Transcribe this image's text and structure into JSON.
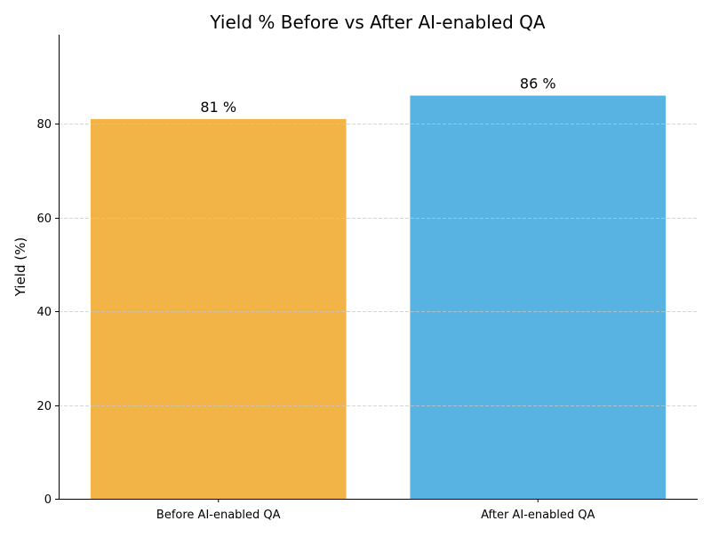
{
  "chart_data": {
    "type": "bar",
    "title": "Yield % Before vs After AI-enabled QA",
    "xlabel": "",
    "ylabel": "Yield (%)",
    "categories": [
      "Before AI-enabled QA",
      "After AI-enabled QA"
    ],
    "values": [
      81,
      86
    ],
    "data_labels": [
      "81 %",
      "86 %"
    ],
    "colors": [
      "#F2B447",
      "#58B2E2"
    ],
    "ylim": [
      0,
      99
    ],
    "yticks": [
      0,
      20,
      40,
      60,
      80
    ],
    "grid": {
      "axis": "y",
      "style": "dashed",
      "color": "#c8c8c8"
    },
    "legend": "none"
  }
}
